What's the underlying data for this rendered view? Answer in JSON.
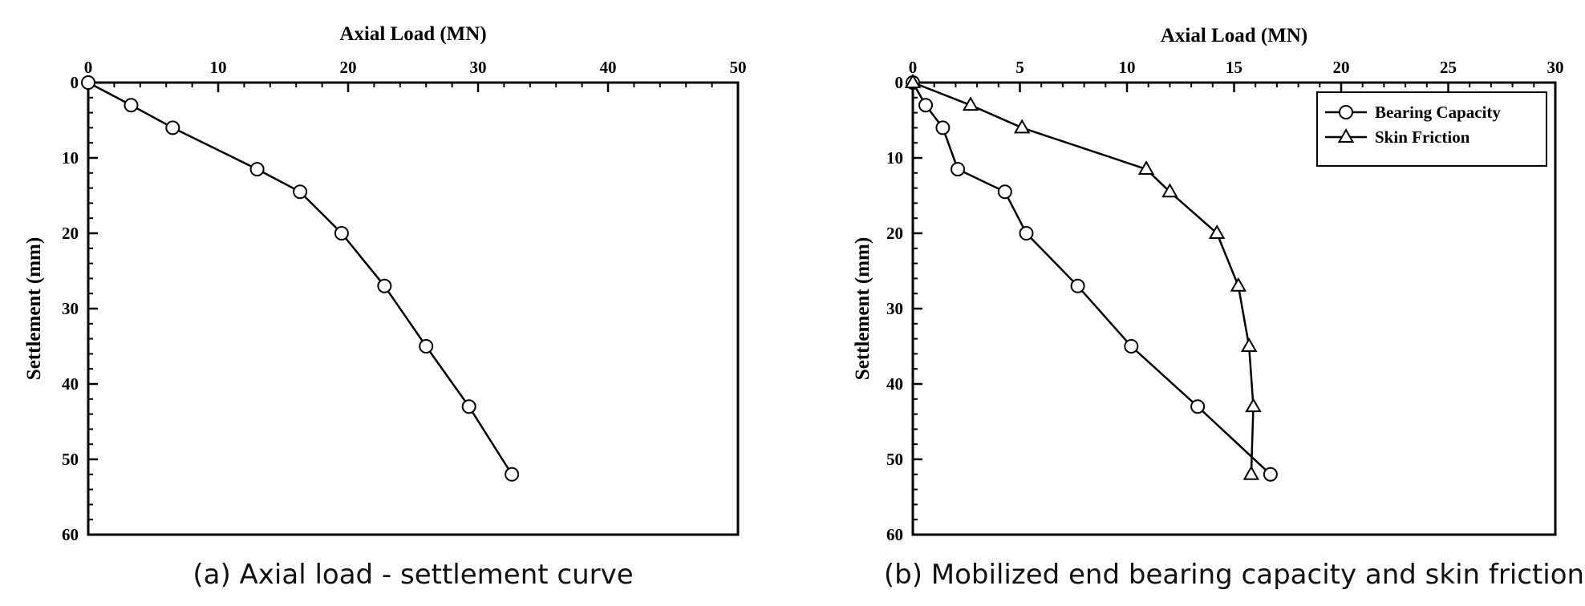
{
  "chart_data": [
    {
      "type": "line",
      "caption": "(a) Axial load - settlement curve",
      "xlabel": "Axial Load (MN)",
      "ylabel": "Settlement (mm)",
      "xlim": [
        0,
        50
      ],
      "ylim": [
        0,
        60
      ],
      "y_inverted": true,
      "x_axis_position": "top",
      "grid": false,
      "xticks": [
        "0",
        "10",
        "20",
        "30",
        "40",
        "50"
      ],
      "yticks": [
        "0",
        "10",
        "20",
        "30",
        "40",
        "50",
        "60"
      ],
      "series": [
        {
          "marker": "circle",
          "x": [
            0,
            3.3,
            6.5,
            13.0,
            16.3,
            19.5,
            22.8,
            26.0,
            29.3,
            32.6
          ],
          "y": [
            0,
            3,
            6,
            11.5,
            14.5,
            20,
            27,
            35,
            43,
            52
          ]
        }
      ]
    },
    {
      "type": "line",
      "caption": "(b) Mobilized end bearing capacity and skin friction",
      "xlabel": "Axial Load (MN)",
      "ylabel": "Settlement (mm)",
      "xlim": [
        0,
        30
      ],
      "ylim": [
        0,
        60
      ],
      "y_inverted": true,
      "x_axis_position": "top",
      "grid": false,
      "legend": "top-right",
      "xticks": [
        "0",
        "5",
        "10",
        "15",
        "20",
        "25",
        "30"
      ],
      "yticks": [
        "0",
        "10",
        "20",
        "30",
        "40",
        "50",
        "60"
      ],
      "series": [
        {
          "name": "Bearing Capacity",
          "marker": "circle",
          "x": [
            0,
            0.6,
            1.4,
            2.1,
            4.3,
            5.3,
            7.7,
            10.2,
            13.3,
            16.7
          ],
          "y": [
            0,
            3,
            6,
            11.5,
            14.5,
            20,
            27,
            35,
            43,
            52
          ]
        },
        {
          "name": "Skin Friction",
          "marker": "triangle",
          "x": [
            0,
            2.7,
            5.1,
            10.9,
            12.0,
            14.2,
            15.2,
            15.7,
            15.9,
            15.8
          ],
          "y": [
            0,
            3,
            6,
            11.5,
            14.5,
            20,
            27,
            35,
            43,
            52
          ]
        }
      ]
    }
  ]
}
